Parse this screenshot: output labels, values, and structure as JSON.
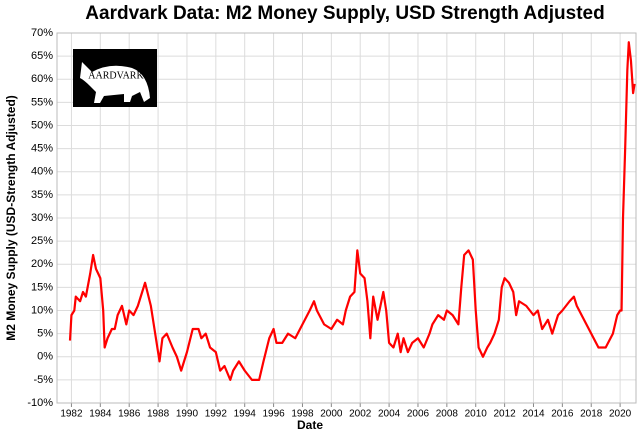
{
  "chart_data": {
    "type": "line",
    "title": "Aardvark Data: M2 Money Supply, USD Strength Adjusted",
    "logo": "AARDVARK",
    "x_label": "Date",
    "y_label": "M2 Money Supply (USD-Strength Adjusted)",
    "grid": true,
    "xlim": [
      1981,
      2021.1
    ],
    "ylim": [
      -10,
      70
    ],
    "xticks": [
      1982,
      1984,
      1986,
      1988,
      1990,
      1992,
      1994,
      1996,
      1998,
      2000,
      2002,
      2004,
      2006,
      2008,
      2010,
      2012,
      2014,
      2016,
      2018,
      2020
    ],
    "yticks": [
      {
        "value": -10,
        "label": "-10%"
      },
      {
        "value": -5,
        "label": "-5%"
      },
      {
        "value": 0,
        "label": "0%"
      },
      {
        "value": 5,
        "label": "5%"
      },
      {
        "value": 10,
        "label": "10%"
      },
      {
        "value": 15,
        "label": "15%"
      },
      {
        "value": 20,
        "label": "20%"
      },
      {
        "value": 25,
        "label": "25%"
      },
      {
        "value": 30,
        "label": "30%"
      },
      {
        "value": 35,
        "label": "35%"
      },
      {
        "value": 40,
        "label": "40%"
      },
      {
        "value": 45,
        "label": "45%"
      },
      {
        "value": 50,
        "label": "50%"
      },
      {
        "value": 55,
        "label": "55%"
      },
      {
        "value": 60,
        "label": "60%"
      },
      {
        "value": 65,
        "label": "65%"
      },
      {
        "value": 70,
        "label": "70%"
      }
    ],
    "series": [
      {
        "color": "#ff0000",
        "x": [
          1981.9,
          1982.0,
          1982.2,
          1982.3,
          1982.6,
          1982.8,
          1983.0,
          1983.3,
          1983.5,
          1983.7,
          1984.0,
          1984.2,
          1984.3,
          1984.5,
          1984.8,
          1985.0,
          1985.2,
          1985.5,
          1985.8,
          1986.0,
          1986.3,
          1986.6,
          1987.0,
          1987.1,
          1987.5,
          1987.8,
          1988.0,
          1988.1,
          1988.3,
          1988.6,
          1989.0,
          1989.3,
          1989.6,
          1990.0,
          1990.4,
          1990.8,
          1991.0,
          1991.3,
          1991.6,
          1992.0,
          1992.3,
          1992.6,
          1993.0,
          1993.2,
          1993.6,
          1994.0,
          1994.5,
          1995.0,
          1995.3,
          1995.7,
          1996.0,
          1996.2,
          1996.6,
          1997.0,
          1997.5,
          1998.0,
          1998.5,
          1998.8,
          1999.0,
          1999.5,
          2000.0,
          2000.4,
          2000.8,
          2001.0,
          2001.3,
          2001.6,
          2001.8,
          2002.0,
          2002.3,
          2002.5,
          2002.7,
          2002.9,
          2003.2,
          2003.6,
          2003.8,
          2004.0,
          2004.3,
          2004.6,
          2004.8,
          2005.0,
          2005.3,
          2005.6,
          2006.0,
          2006.4,
          2006.8,
          2007.0,
          2007.4,
          2007.8,
          2008.0,
          2008.4,
          2008.8,
          2009.0,
          2009.2,
          2009.5,
          2009.8,
          2010.0,
          2010.2,
          2010.5,
          2010.8,
          2011.0,
          2011.3,
          2011.6,
          2011.8,
          2012.0,
          2012.3,
          2012.6,
          2012.8,
          2013.0,
          2013.5,
          2014.0,
          2014.3,
          2014.6,
          2015.0,
          2015.3,
          2015.7,
          2016.0,
          2016.5,
          2016.8,
          2017.0,
          2017.5,
          2018.0,
          2018.5,
          2019.0,
          2019.5,
          2019.8,
          2020.0,
          2020.1,
          2020.2,
          2020.35,
          2020.5,
          2020.6,
          2020.75,
          2020.9,
          2021.0
        ],
        "values": [
          3.5,
          9,
          10,
          13,
          12,
          14,
          13,
          18,
          22,
          19,
          17,
          10,
          2,
          4,
          6,
          6,
          9,
          11,
          7,
          10,
          9,
          11,
          15,
          16,
          11,
          5,
          1,
          -1,
          4,
          5,
          2,
          0,
          -3,
          1,
          6,
          6,
          4,
          5,
          2,
          1,
          -3,
          -2,
          -5,
          -3,
          -1,
          -3,
          -5,
          -5,
          -1,
          4,
          6,
          3,
          3,
          5,
          4,
          7,
          10,
          12,
          10,
          7,
          6,
          8,
          7,
          10,
          13,
          14,
          23,
          18,
          17,
          12,
          4,
          13,
          8,
          14,
          10,
          3,
          2,
          5,
          1,
          4,
          1,
          3,
          4,
          2,
          5,
          7,
          9,
          8,
          10,
          9,
          7,
          15,
          22,
          23,
          21,
          10,
          2,
          0,
          2,
          3,
          5,
          8,
          15,
          17,
          16,
          14,
          9,
          12,
          11,
          9,
          10,
          6,
          8,
          5,
          9,
          10,
          12,
          13,
          11,
          8,
          5,
          2,
          2,
          5,
          9,
          10,
          10,
          30,
          45,
          62,
          68,
          64,
          57,
          59
        ]
      }
    ]
  }
}
